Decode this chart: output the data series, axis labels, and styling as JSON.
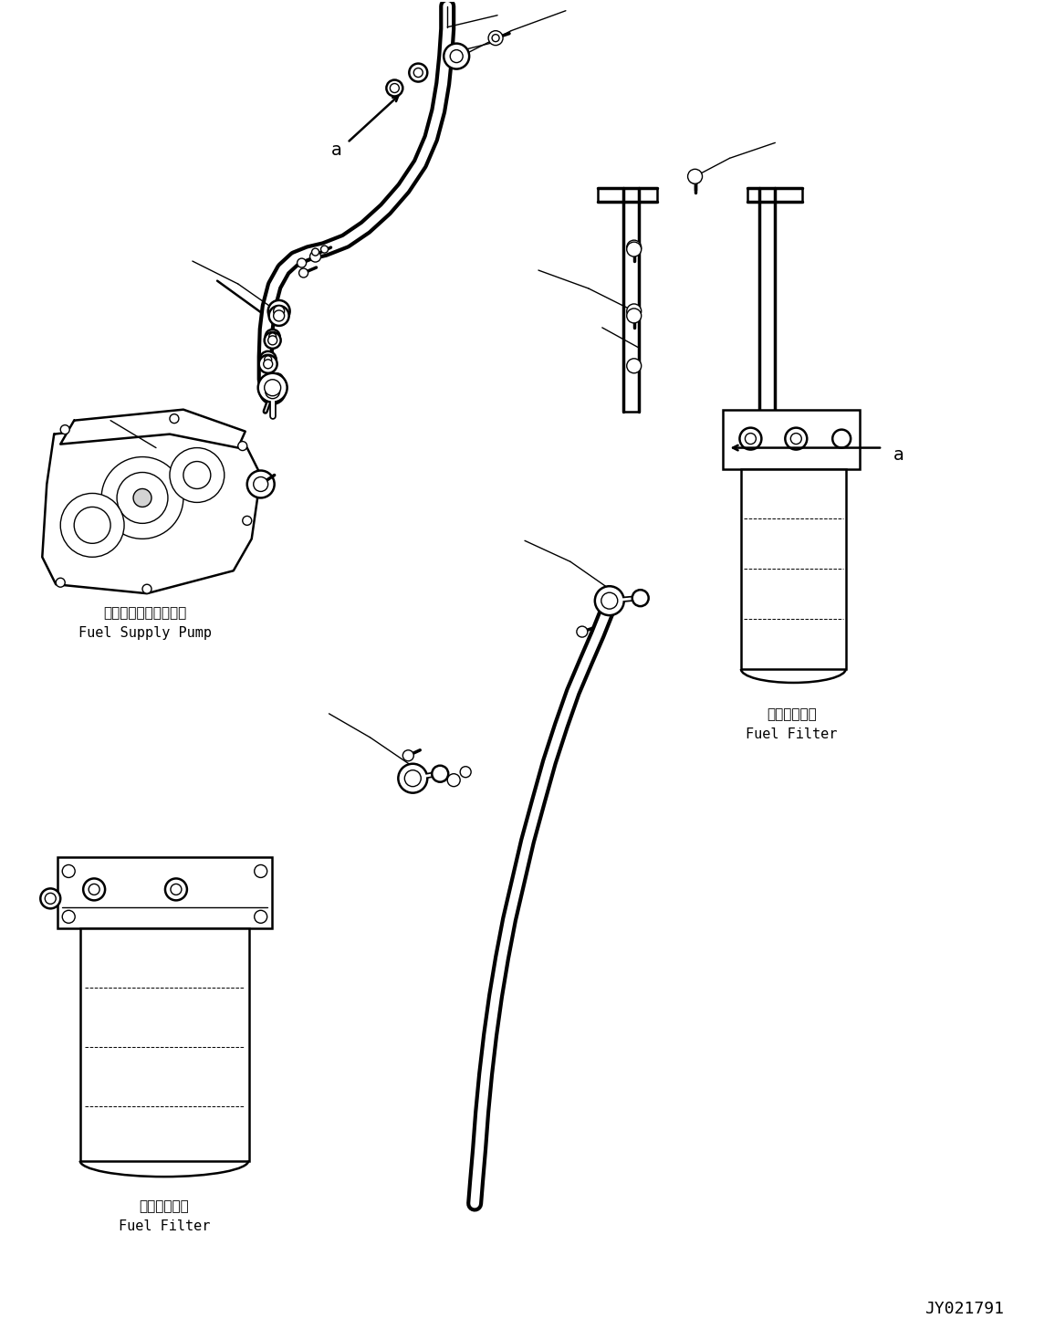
{
  "bg_color": "#ffffff",
  "line_color": "#000000",
  "fig_width": 11.56,
  "fig_height": 14.56,
  "dpi": 100,
  "label_fuel_supply_pump_jp": "フェルサプライポンプ",
  "label_fuel_supply_pump_en": "Fuel Supply Pump",
  "label_fuel_filter_jp": "燃料フィルタ",
  "label_fuel_filter_en": "Fuel Filter",
  "drawing_id": "JY021791",
  "label_a": "a",
  "lw_hose_outer": 13,
  "lw_hose_inner": 7,
  "lw_main": 1.8,
  "lw_thin": 1.0,
  "lw_thick": 2.5
}
